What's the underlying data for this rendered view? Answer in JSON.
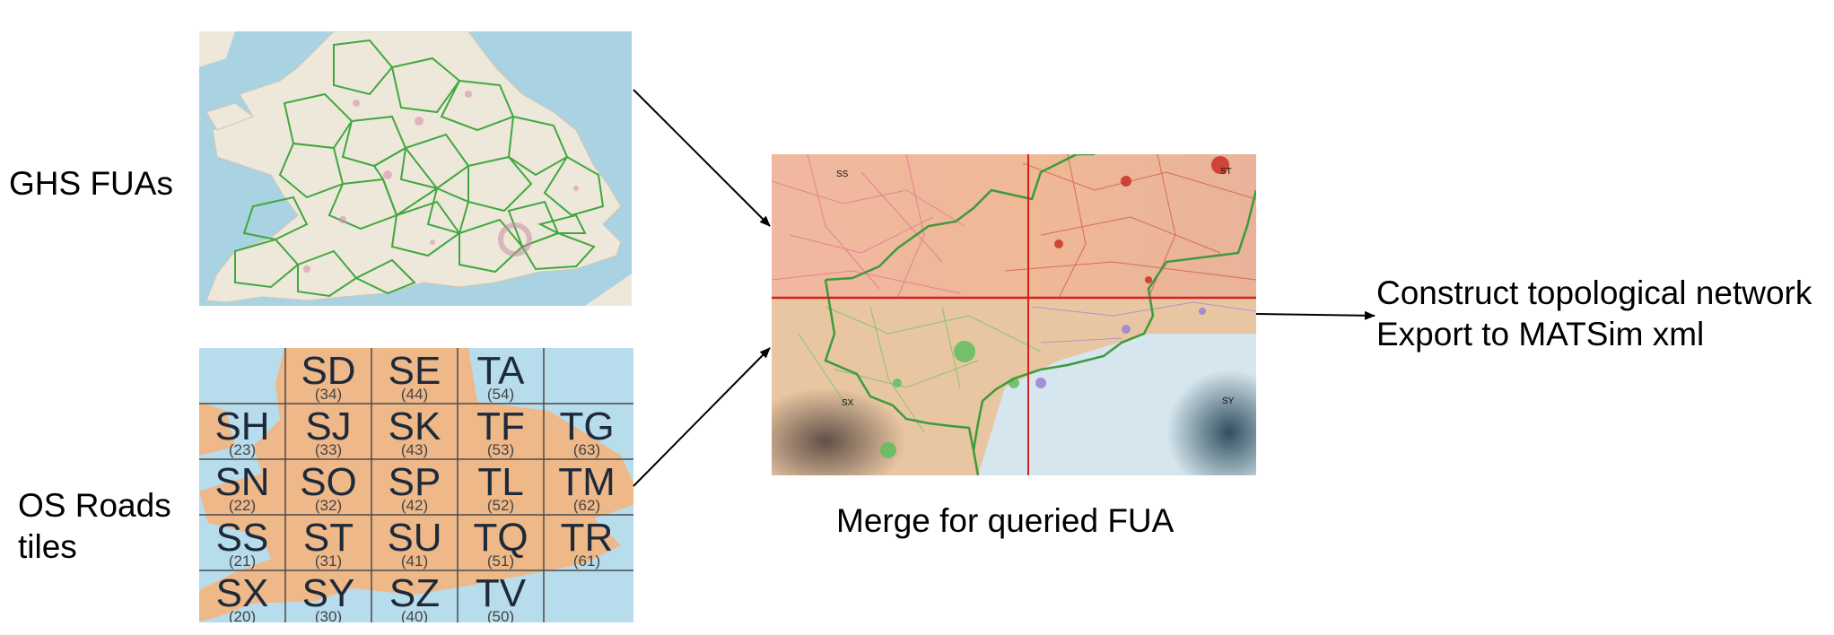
{
  "labels": {
    "ghs": "GHS FUAs",
    "os_line1": "OS Roads",
    "os_line2": "tiles",
    "merge": "Merge for queried FUA",
    "output_line1": "Construct topological network",
    "output_line2": "Export to MATSim xml"
  },
  "tiles": [
    {
      "name": "SD",
      "num": "(34)"
    },
    {
      "name": "SE",
      "num": "(44)"
    },
    {
      "name": "TA",
      "num": "(54)"
    },
    {
      "name": "SH",
      "num": "(23)"
    },
    {
      "name": "SJ",
      "num": "(33)"
    },
    {
      "name": "SK",
      "num": "(43)"
    },
    {
      "name": "TF",
      "num": "(53)"
    },
    {
      "name": "TG",
      "num": "(63)"
    },
    {
      "name": "SN",
      "num": "(22)"
    },
    {
      "name": "SO",
      "num": "(32)"
    },
    {
      "name": "SP",
      "num": "(42)"
    },
    {
      "name": "TL",
      "num": "(52)"
    },
    {
      "name": "TM",
      "num": "(62)"
    },
    {
      "name": "SS",
      "num": "(21)"
    },
    {
      "name": "ST",
      "num": "(31)"
    },
    {
      "name": "SU",
      "num": "(41)"
    },
    {
      "name": "TQ",
      "num": "(51)"
    },
    {
      "name": "TR",
      "num": "(61)"
    },
    {
      "name": "SX",
      "num": "(20)"
    },
    {
      "name": "SY",
      "num": "(30)"
    },
    {
      "name": "SZ",
      "num": "(40)"
    },
    {
      "name": "TV",
      "num": "(50)"
    }
  ],
  "merge_tags": {
    "tl": "SS",
    "tr": "ST",
    "bl": "SX",
    "br": "SY"
  },
  "colors": {
    "sea": "#a9d3e3",
    "land": "#efe9dd",
    "fua_outline": "#4aae4a",
    "tile_land": "#efb888",
    "tile_sea": "#b7dcec",
    "grid_red": "#d62020",
    "roads_pink": "#d9558a",
    "roads_red": "#c83a2a",
    "roads_green": "#5fbf5f",
    "roads_purple": "#9b7fd4"
  }
}
